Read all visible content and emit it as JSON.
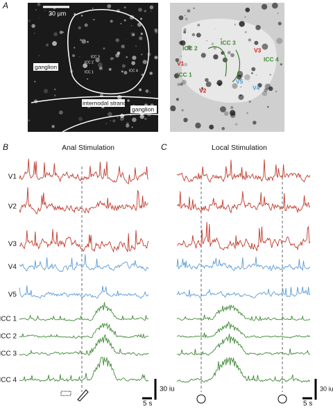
{
  "panel_a": {
    "label": "A",
    "scale_bar": "30 µm",
    "left_labels": [
      "ganglion",
      "internodal strand",
      "ganglion",
      "ICC 1",
      "ICC 2",
      "ICC 3",
      "ICC 4"
    ],
    "right_labels": [
      "ICC 2",
      "ICC 3",
      "V3",
      "ICC 4",
      "V1",
      "ICC 1",
      "V2",
      "V5",
      "V4"
    ]
  },
  "panel_b": {
    "label": "B",
    "title": "Anal Stimulation",
    "rows": [
      "V1",
      "V2",
      "V3",
      "V4",
      "V5",
      "ICC 1",
      "ICC 2",
      "ICC 3",
      "ICC 4"
    ],
    "scale_y": "30 iu",
    "scale_x": "5 s"
  },
  "panel_c": {
    "label": "C",
    "title": "Local Stimulation",
    "scale_y": "30 iu",
    "scale_x": "5 s"
  }
}
